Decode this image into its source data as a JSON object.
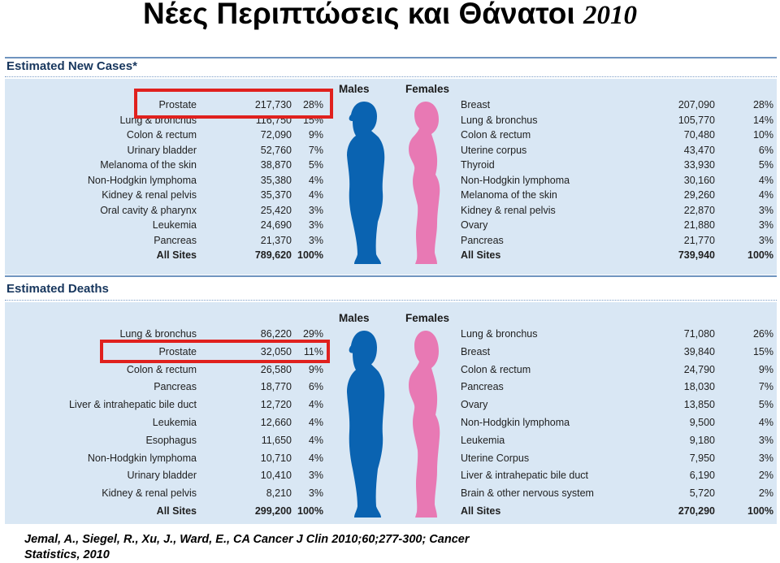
{
  "title": {
    "text": "Νέες Περιπτώσεις και Θάνατοι",
    "year": "2010"
  },
  "colors": {
    "male": "#0a63b1",
    "female": "#e879b4",
    "highlight": "#e0211e",
    "panel": "#d9e7f4",
    "heading": "#17365d"
  },
  "new_cases": {
    "heading": "Estimated New Cases*",
    "males_label": "Males",
    "females_label": "Females",
    "male_rows": [
      {
        "site": "Prostate",
        "count": "217,730",
        "pct": "28%"
      },
      {
        "site": "Lung & bronchus",
        "count": "116,750",
        "pct": "15%"
      },
      {
        "site": "Colon & rectum",
        "count": "72,090",
        "pct": "9%"
      },
      {
        "site": "Urinary bladder",
        "count": "52,760",
        "pct": "7%"
      },
      {
        "site": "Melanoma of the skin",
        "count": "38,870",
        "pct": "5%"
      },
      {
        "site": "Non-Hodgkin lymphoma",
        "count": "35,380",
        "pct": "4%"
      },
      {
        "site": "Kidney & renal pelvis",
        "count": "35,370",
        "pct": "4%"
      },
      {
        "site": "Oral cavity & pharynx",
        "count": "25,420",
        "pct": "3%"
      },
      {
        "site": "Leukemia",
        "count": "24,690",
        "pct": "3%"
      },
      {
        "site": "Pancreas",
        "count": "21,370",
        "pct": "3%"
      },
      {
        "site": "All Sites",
        "count": "789,620",
        "pct": "100%"
      }
    ],
    "female_rows": [
      {
        "site": "Breast",
        "count": "207,090",
        "pct": "28%"
      },
      {
        "site": "Lung & bronchus",
        "count": "105,770",
        "pct": "14%"
      },
      {
        "site": "Colon & rectum",
        "count": "70,480",
        "pct": "10%"
      },
      {
        "site": "Uterine corpus",
        "count": "43,470",
        "pct": "6%"
      },
      {
        "site": "Thyroid",
        "count": "33,930",
        "pct": "5%"
      },
      {
        "site": "Non-Hodgkin lymphoma",
        "count": "30,160",
        "pct": "4%"
      },
      {
        "site": "Melanoma of the skin",
        "count": "29,260",
        "pct": "4%"
      },
      {
        "site": "Kidney & renal pelvis",
        "count": "22,870",
        "pct": "3%"
      },
      {
        "site": "Ovary",
        "count": "21,880",
        "pct": "3%"
      },
      {
        "site": "Pancreas",
        "count": "21,770",
        "pct": "3%"
      },
      {
        "site": "All Sites",
        "count": "739,940",
        "pct": "100%"
      }
    ]
  },
  "deaths": {
    "heading": "Estimated Deaths",
    "males_label": "Males",
    "females_label": "Females",
    "male_rows": [
      {
        "site": "Lung & bronchus",
        "count": "86,220",
        "pct": "29%"
      },
      {
        "site": "Prostate",
        "count": "32,050",
        "pct": "11%"
      },
      {
        "site": "Colon & rectum",
        "count": "26,580",
        "pct": "9%"
      },
      {
        "site": "Pancreas",
        "count": "18,770",
        "pct": "6%"
      },
      {
        "site": "Liver & intrahepatic bile duct",
        "count": "12,720",
        "pct": "4%"
      },
      {
        "site": "Leukemia",
        "count": "12,660",
        "pct": "4%"
      },
      {
        "site": "Esophagus",
        "count": "11,650",
        "pct": "4%"
      },
      {
        "site": "Non-Hodgkin lymphoma",
        "count": "10,710",
        "pct": "4%"
      },
      {
        "site": "Urinary bladder",
        "count": "10,410",
        "pct": "3%"
      },
      {
        "site": "Kidney & renal pelvis",
        "count": "8,210",
        "pct": "3%"
      },
      {
        "site": "All Sites",
        "count": "299,200",
        "pct": "100%"
      }
    ],
    "female_rows": [
      {
        "site": "Lung & bronchus",
        "count": "71,080",
        "pct": "26%"
      },
      {
        "site": "Breast",
        "count": "39,840",
        "pct": "15%"
      },
      {
        "site": "Colon & rectum",
        "count": "24,790",
        "pct": "9%"
      },
      {
        "site": "Pancreas",
        "count": "18,030",
        "pct": "7%"
      },
      {
        "site": "Ovary",
        "count": "13,850",
        "pct": "5%"
      },
      {
        "site": "Non-Hodgkin lymphoma",
        "count": "9,500",
        "pct": "4%"
      },
      {
        "site": "Leukemia",
        "count": "9,180",
        "pct": "3%"
      },
      {
        "site": "Uterine Corpus",
        "count": "7,950",
        "pct": "3%"
      },
      {
        "site": "Liver & intrahepatic bile duct",
        "count": "6,190",
        "pct": "2%"
      },
      {
        "site": "Brain & other nervous system",
        "count": "5,720",
        "pct": "2%"
      },
      {
        "site": "All Sites",
        "count": "270,290",
        "pct": "100%"
      }
    ]
  },
  "citation": {
    "line1": "Jemal, A., Siegel, R., Xu, J., Ward, E., CA Cancer J Clin 2010;60;277-300; Cancer",
    "line2": "Statistics, 2010"
  }
}
